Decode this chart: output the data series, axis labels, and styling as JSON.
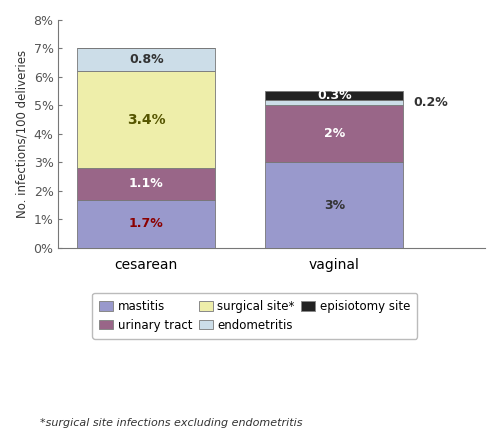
{
  "categories": [
    "cesarean",
    "vaginal"
  ],
  "segments": {
    "mastitis": {
      "values": [
        1.7,
        3.0
      ],
      "color": "#9999cc",
      "label": "mastitis"
    },
    "urinary_tract": {
      "values": [
        1.1,
        2.0
      ],
      "color": "#996688",
      "label": "urinary tract"
    },
    "surgical_site": {
      "values": [
        3.4,
        0.0
      ],
      "color": "#eeeeaa",
      "label": "surgical site*"
    },
    "endometritis": {
      "values": [
        0.8,
        0.2
      ],
      "color": "#ccdde8",
      "label": "endometritis"
    },
    "episiotomy": {
      "values": [
        0.0,
        0.3
      ],
      "color": "#222222",
      "label": "episiotomy site"
    }
  },
  "stack_order": [
    "mastitis",
    "urinary_tract",
    "surgical_site",
    "endometritis",
    "episiotomy"
  ],
  "bar_labels": {
    "cesarean": [
      {
        "segment": "mastitis",
        "label": "1.7%",
        "color": "#8b0000",
        "fontsize": 9,
        "fontweight": "bold"
      },
      {
        "segment": "urinary_tract",
        "label": "1.1%",
        "color": "white",
        "fontsize": 9,
        "fontweight": "bold"
      },
      {
        "segment": "surgical_site",
        "label": "3.4%",
        "color": "#555500",
        "fontsize": 10,
        "fontweight": "bold"
      },
      {
        "segment": "endometritis",
        "label": "0.8%",
        "color": "#333333",
        "fontsize": 9,
        "fontweight": "bold"
      }
    ],
    "vaginal": [
      {
        "segment": "mastitis",
        "label": "3%",
        "color": "#333333",
        "fontsize": 9,
        "fontweight": "bold"
      },
      {
        "segment": "urinary_tract",
        "label": "2%",
        "color": "white",
        "fontsize": 9,
        "fontweight": "bold"
      },
      {
        "segment": "episiotomy",
        "label": "0.3%",
        "color": "white",
        "fontsize": 9,
        "fontweight": "bold"
      }
    ]
  },
  "outside_label": {
    "text": "0.2%",
    "color": "#333333",
    "fontsize": 9,
    "fontweight": "bold"
  },
  "ylabel": "No. infections/100 deliveries",
  "ylim": [
    0,
    0.08
  ],
  "yticks": [
    0,
    0.01,
    0.02,
    0.03,
    0.04,
    0.05,
    0.06,
    0.07,
    0.08
  ],
  "ytick_labels": [
    "0%",
    "1%",
    "2%",
    "3%",
    "4%",
    "5%",
    "6%",
    "7%",
    "8%"
  ],
  "footnote": "*surgical site infections excluding endometritis",
  "bar_width": 0.55,
  "bar_positions": [
    0.25,
    1.0
  ],
  "xlim": [
    -0.1,
    1.6
  ],
  "legend_order": [
    "mastitis",
    "urinary_tract",
    "surgical_site",
    "endometritis",
    "episiotomy"
  ],
  "legend_labels": {
    "mastitis": "mastitis",
    "urinary_tract": "urinary tract",
    "surgical_site": "surgical site*",
    "endometritis": "endometritis",
    "episiotomy": "episiotomy site"
  }
}
